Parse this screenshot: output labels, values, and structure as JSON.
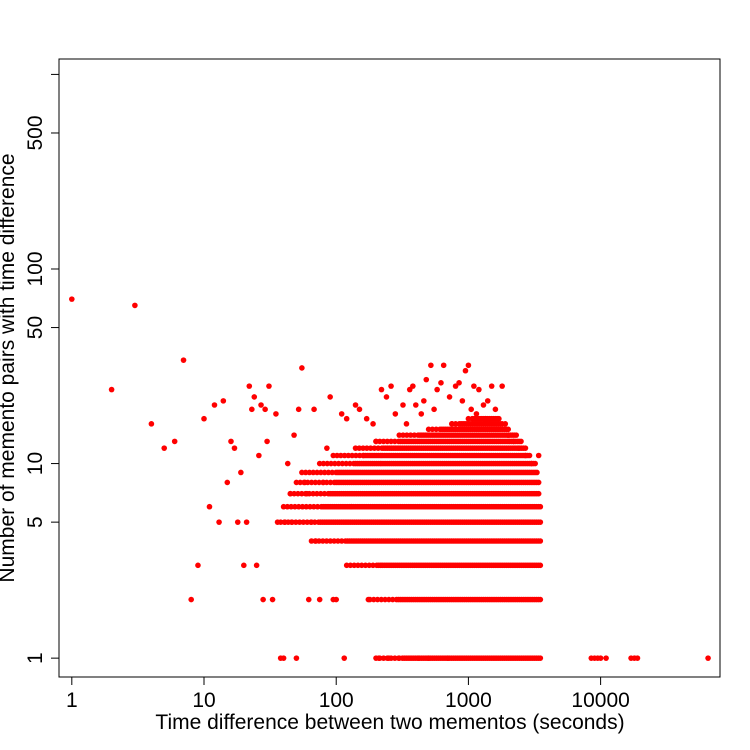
{
  "chart_data": {
    "type": "scatter",
    "title": "",
    "xlabel": "Time difference between two mementos (seconds)",
    "ylabel": "Number of memento pairs with time difference",
    "x_scale": "log",
    "y_scale": "log",
    "xlim": [
      0.8,
      80000
    ],
    "ylim": [
      0.8,
      1200
    ],
    "x_ticks": [
      {
        "value": 1,
        "label": "1"
      },
      {
        "value": 10,
        "label": "10"
      },
      {
        "value": 100,
        "label": "100"
      },
      {
        "value": 1000,
        "label": "1000"
      },
      {
        "value": 10000,
        "label": "10000"
      }
    ],
    "y_ticks": [
      {
        "value": 1,
        "label": "1"
      },
      {
        "value": 5,
        "label": "5"
      },
      {
        "value": 10,
        "label": "10"
      },
      {
        "value": 50,
        "label": "50"
      },
      {
        "value": 100,
        "label": "100"
      },
      {
        "value": 500,
        "label": "500"
      },
      {
        "value": 1000,
        "label": ""
      }
    ],
    "grid": false,
    "legend": "none",
    "marker_color": "#ff0000",
    "series": [
      {
        "points": [
          [
            1,
            70
          ],
          [
            2,
            24
          ],
          [
            3,
            65
          ],
          [
            4,
            16
          ],
          [
            5,
            12
          ],
          [
            6,
            13
          ],
          [
            7,
            34
          ],
          [
            8,
            2
          ],
          [
            9,
            3
          ],
          [
            10,
            17
          ],
          [
            11,
            6
          ],
          [
            12,
            20
          ],
          [
            13,
            5
          ],
          [
            14,
            21
          ],
          [
            15,
            8
          ],
          [
            16,
            13
          ],
          [
            17,
            12
          ],
          [
            18,
            5
          ],
          [
            19,
            9
          ],
          [
            20,
            3
          ],
          [
            21,
            5
          ],
          [
            22,
            25
          ],
          [
            23,
            19
          ],
          [
            24,
            22
          ],
          [
            25,
            3
          ],
          [
            26,
            11
          ],
          [
            27,
            20
          ],
          [
            28,
            2
          ],
          [
            29,
            19
          ],
          [
            30,
            13
          ],
          [
            31,
            25
          ],
          [
            33,
            2
          ],
          [
            35,
            18
          ],
          [
            36,
            5
          ],
          [
            38,
            1
          ],
          [
            40,
            1
          ],
          [
            41,
            5
          ],
          [
            43,
            10
          ],
          [
            45,
            7
          ],
          [
            46,
            5
          ],
          [
            48,
            14
          ],
          [
            50,
            1
          ],
          [
            52,
            19
          ],
          [
            55,
            31
          ],
          [
            58,
            8
          ],
          [
            60,
            7
          ],
          [
            62,
            2
          ],
          [
            65,
            5
          ],
          [
            68,
            19
          ],
          [
            70,
            4
          ],
          [
            75,
            2
          ],
          [
            80,
            8
          ],
          [
            85,
            12
          ],
          [
            90,
            22
          ],
          [
            95,
            2
          ],
          [
            100,
            2
          ],
          [
            110,
            18
          ],
          [
            115,
            1
          ],
          [
            120,
            17
          ],
          [
            130,
            6
          ],
          [
            140,
            20
          ],
          [
            150,
            19
          ],
          [
            160,
            11
          ],
          [
            170,
            17
          ],
          [
            175,
            2
          ],
          [
            190,
            16
          ],
          [
            200,
            13
          ],
          [
            210,
            1
          ],
          [
            220,
            24
          ],
          [
            240,
            22
          ],
          [
            250,
            1
          ],
          [
            260,
            25
          ],
          [
            280,
            18
          ],
          [
            300,
            1
          ],
          [
            320,
            20
          ],
          [
            340,
            16
          ],
          [
            360,
            24
          ],
          [
            380,
            25
          ],
          [
            400,
            20
          ],
          [
            420,
            1
          ],
          [
            440,
            18
          ],
          [
            460,
            21
          ],
          [
            480,
            27
          ],
          [
            500,
            1
          ],
          [
            520,
            32
          ],
          [
            550,
            19
          ],
          [
            580,
            24
          ],
          [
            620,
            26
          ],
          [
            650,
            32
          ],
          [
            700,
            1
          ],
          [
            720,
            22
          ],
          [
            750,
            16
          ],
          [
            800,
            25
          ],
          [
            850,
            26
          ],
          [
            900,
            21
          ],
          [
            950,
            30
          ],
          [
            1000,
            32
          ],
          [
            1050,
            19
          ],
          [
            1100,
            25
          ],
          [
            1150,
            18
          ],
          [
            1200,
            24
          ],
          [
            1300,
            20
          ],
          [
            1350,
            17
          ],
          [
            1400,
            21
          ],
          [
            1500,
            25
          ],
          [
            1600,
            19
          ],
          [
            1700,
            17
          ],
          [
            1800,
            25
          ],
          [
            1900,
            16
          ],
          [
            2000,
            14
          ],
          [
            2200,
            13
          ],
          [
            2400,
            12
          ],
          [
            2700,
            11
          ],
          [
            3000,
            10
          ],
          [
            3400,
            11
          ],
          [
            8500,
            1
          ],
          [
            9000,
            1
          ],
          [
            9500,
            1
          ],
          [
            10000,
            1
          ],
          [
            11000,
            1
          ],
          [
            17000,
            1
          ],
          [
            18000,
            1
          ],
          [
            19000,
            1
          ],
          [
            65000,
            1
          ]
        ]
      }
    ],
    "dense_bands": [
      {
        "y": 1,
        "x_from": 200,
        "x_to": 3500
      },
      {
        "y": 2,
        "x_from": 180,
        "x_to": 3500
      },
      {
        "y": 3,
        "x_from": 120,
        "x_to": 3500
      },
      {
        "y": 4,
        "x_from": 65,
        "x_to": 3500
      },
      {
        "y": 5,
        "x_from": 38,
        "x_to": 3500
      },
      {
        "y": 6,
        "x_from": 40,
        "x_to": 3500
      },
      {
        "y": 7,
        "x_from": 45,
        "x_to": 3400
      },
      {
        "y": 8,
        "x_from": 50,
        "x_to": 3400
      },
      {
        "y": 9,
        "x_from": 55,
        "x_to": 3300
      },
      {
        "y": 10,
        "x_from": 75,
        "x_to": 3200
      },
      {
        "y": 11,
        "x_from": 95,
        "x_to": 2900
      },
      {
        "y": 12,
        "x_from": 140,
        "x_to": 2700
      },
      {
        "y": 13,
        "x_from": 200,
        "x_to": 2500
      },
      {
        "y": 14,
        "x_from": 300,
        "x_to": 2300
      },
      {
        "y": 15,
        "x_from": 500,
        "x_to": 2000
      },
      {
        "y": 16,
        "x_from": 750,
        "x_to": 1800
      },
      {
        "y": 17,
        "x_from": 1000,
        "x_to": 1650
      }
    ]
  }
}
